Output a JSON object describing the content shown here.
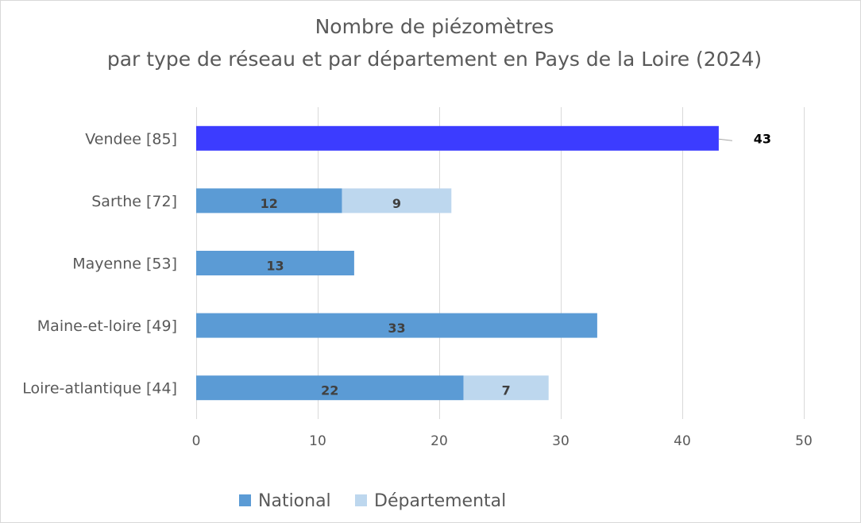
{
  "chart_data": {
    "type": "bar",
    "orientation": "horizontal",
    "stacked": true,
    "title": "Nombre de piézomètres",
    "subtitle": "par type de réseau et par département en Pays de la Loire (2024)",
    "categories": [
      "Vendee [85]",
      "Sarthe [72]",
      "Mayenne [53]",
      "Maine-et-loire [49]",
      "Loire-atlantique [44]"
    ],
    "series": [
      {
        "name": "National",
        "values": [
          43,
          12,
          13,
          33,
          22
        ],
        "color": "#5b9bd5",
        "highlight": {
          "Vendee [85]": "#3c3cff"
        }
      },
      {
        "name": "Départemental",
        "values": [
          0,
          9,
          0,
          0,
          7
        ],
        "color": "#bdd7ee"
      }
    ],
    "data_labels": [
      {
        "category": "Vendee [85]",
        "series": "National",
        "text": "43",
        "position": "outside-end-callout"
      },
      {
        "category": "Sarthe [72]",
        "series": "National",
        "text": "12"
      },
      {
        "category": "Sarthe [72]",
        "series": "Départemental",
        "text": "9"
      },
      {
        "category": "Mayenne [53]",
        "series": "National",
        "text": "13"
      },
      {
        "category": "Maine-et-loire [49]",
        "series": "National",
        "text": "33"
      },
      {
        "category": "Loire-atlantique [44]",
        "series": "National",
        "text": "22"
      },
      {
        "category": "Loire-atlantique [44]",
        "series": "Départemental",
        "text": "7"
      }
    ],
    "xlim": [
      0,
      50
    ],
    "xticks": [
      0,
      10,
      20,
      30,
      40,
      50
    ],
    "grid": true,
    "legend": "bottom",
    "xlabel": "",
    "ylabel": ""
  }
}
